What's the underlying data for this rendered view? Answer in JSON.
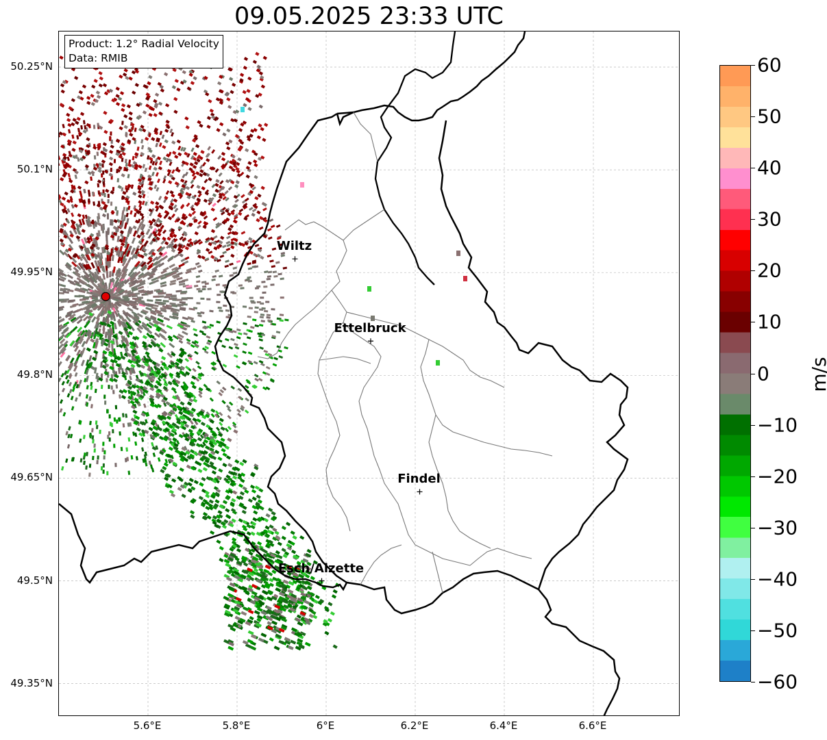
{
  "title": "09.05.2025 23:33 UTC",
  "info_box": {
    "product": "Product: 1.2° Radial Velocity",
    "data": "Data: RMIB"
  },
  "axes": {
    "lat_labels": [
      "50.25°N",
      "50.1°N",
      "49.95°N",
      "49.8°N",
      "49.65°N",
      "49.5°N",
      "49.35°N"
    ],
    "lon_labels": [
      "5.6°E",
      "5.8°E",
      "6°E",
      "6.2°E",
      "6.4°E",
      "6.6°E"
    ],
    "lon_range": [
      5.4,
      6.8
    ],
    "lat_range": [
      49.3,
      50.3
    ],
    "grid": true
  },
  "cities": [
    {
      "name": "Wiltz",
      "lon": 5.93,
      "lat": 49.97
    },
    {
      "name": "Ettelbruck",
      "lon": 6.1,
      "lat": 49.85
    },
    {
      "name": "Findel",
      "lon": 6.21,
      "lat": 49.63
    },
    {
      "name": "Esch/Alzette",
      "lon": 5.99,
      "lat": 49.5
    }
  ],
  "radar_site": {
    "lon": 5.505,
    "lat": 49.915,
    "color": "#e00000"
  },
  "colorbar": {
    "label": "m/s",
    "min": -60,
    "max": 60,
    "ticks": [
      "60",
      "50",
      "40",
      "30",
      "20",
      "10",
      "0",
      "−10",
      "−20",
      "−30",
      "−40",
      "−50",
      "−60"
    ],
    "colors": [
      "#ff9a55",
      "#ffb26a",
      "#ffc882",
      "#ffe19a",
      "#ffb8b8",
      "#ff8fcf",
      "#ff5a7a",
      "#ff3050",
      "#ff0000",
      "#d80000",
      "#b00000",
      "#880000",
      "#6a0000",
      "#8a4a50",
      "#8a6a70",
      "#8a7c78",
      "#6a8a6a",
      "#007000",
      "#008a00",
      "#00a800",
      "#00c800",
      "#00e800",
      "#40ff40",
      "#80f0a0",
      "#b0f0f0",
      "#80e8e8",
      "#50e0e0",
      "#30d8d8",
      "#2aa8d8",
      "#1e80c8"
    ]
  }
}
